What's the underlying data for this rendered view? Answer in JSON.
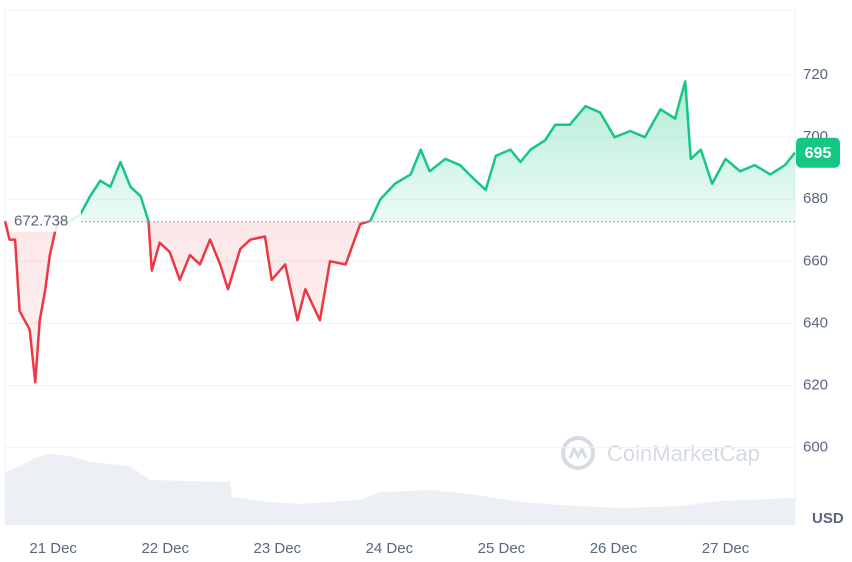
{
  "chart_data": {
    "type": "line",
    "x": [
      20.57,
      20.61,
      20.66,
      20.7,
      20.79,
      20.84,
      20.88,
      20.93,
      20.97,
      21.02,
      21.06,
      21.15,
      21.24,
      21.33,
      21.42,
      21.51,
      21.6,
      21.69,
      21.78,
      21.85,
      21.88,
      21.95,
      22.04,
      22.13,
      22.22,
      22.31,
      22.4,
      22.49,
      22.56,
      22.67,
      22.76,
      22.89,
      22.95,
      23.07,
      23.18,
      23.25,
      23.38,
      23.47,
      23.61,
      23.74,
      23.83,
      23.92,
      24.05,
      24.19,
      24.28,
      24.36,
      24.5,
      24.63,
      24.77,
      24.86,
      24.95,
      25.08,
      25.17,
      25.26,
      25.39,
      25.48,
      25.61,
      25.75,
      25.88,
      26.01,
      26.15,
      26.28,
      26.42,
      26.55,
      26.64,
      26.69,
      26.78,
      26.88,
      27.0,
      27.13,
      27.26,
      27.4,
      27.53,
      27.62
    ],
    "series": [
      {
        "color_up": "#16c784",
        "color_down": "#ea3943",
        "values": [
          673,
          667,
          667,
          644,
          638,
          621,
          641,
          651,
          662,
          670,
          673,
          673,
          675,
          681,
          686,
          684,
          692,
          684,
          681,
          673,
          657,
          666,
          663,
          654,
          662,
          659,
          667,
          659,
          651,
          664,
          667,
          668,
          654,
          659,
          641,
          651,
          641,
          660,
          659,
          672,
          673,
          680,
          685,
          688,
          696,
          689,
          693,
          691,
          686,
          683,
          694,
          696,
          692,
          696,
          699,
          704,
          704,
          710,
          708,
          700,
          702,
          700,
          709,
          706,
          718,
          693,
          696,
          685,
          693,
          689,
          691,
          688,
          691,
          695
        ]
      }
    ],
    "baseline": 672.738,
    "current_price": 695,
    "xlim": [
      20.57,
      27.62
    ],
    "xticks": [
      {
        "value": 21,
        "label": "21 Dec"
      },
      {
        "value": 22,
        "label": "22 Dec"
      },
      {
        "value": 23,
        "label": "23 Dec"
      },
      {
        "value": 24,
        "label": "24 Dec"
      },
      {
        "value": 25,
        "label": "25 Dec"
      },
      {
        "value": 26,
        "label": "26 Dec"
      },
      {
        "value": 27,
        "label": "27 Dec"
      }
    ],
    "ylim": [
      575,
      741
    ],
    "yticks": [
      600,
      620,
      640,
      660,
      680,
      700,
      720
    ],
    "y_axis_label": "USD",
    "watermark": "CoinMarketCap",
    "grid": true
  }
}
